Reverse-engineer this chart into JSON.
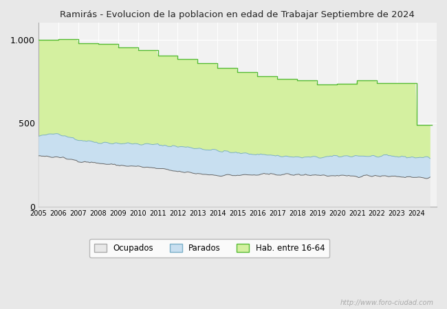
{
  "title": "Ramirás - Evolucion de la poblacion en edad de Trabajar Septiembre de 2024",
  "years": [
    2005,
    2006,
    2007,
    2008,
    2009,
    2010,
    2011,
    2012,
    2013,
    2014,
    2015,
    2016,
    2017,
    2018,
    2019,
    2020,
    2021,
    2022,
    2023,
    2024
  ],
  "hab_16_64": [
    1000,
    1003,
    980,
    975,
    955,
    935,
    905,
    885,
    860,
    830,
    805,
    780,
    765,
    755,
    730,
    735,
    755,
    740,
    740,
    490
  ],
  "parados_upper": [
    420,
    440,
    400,
    385,
    380,
    375,
    370,
    360,
    350,
    335,
    320,
    315,
    305,
    295,
    295,
    300,
    305,
    300,
    300,
    295
  ],
  "ocupados_upper": [
    305,
    295,
    275,
    260,
    248,
    240,
    228,
    210,
    198,
    188,
    188,
    190,
    195,
    190,
    190,
    182,
    182,
    187,
    182,
    175
  ],
  "color_hab_fill": "#d4f0a0",
  "color_hab_line": "#55bb33",
  "color_parados_fill": "#c8dff0",
  "color_parados_line": "#7aafc8",
  "color_ocupados_fill": "#e8e8e8",
  "color_ocupados_line": "#666666",
  "color_background": "#e8e8e8",
  "color_plot_bg": "#f2f2f2",
  "watermark": "http://www.foro-ciudad.com",
  "legend_labels": [
    "Ocupados",
    "Parados",
    "Hab. entre 16-64"
  ],
  "ylim": [
    0,
    1100
  ],
  "yticks": [
    0,
    500,
    1000
  ],
  "ytick_labels": [
    "0",
    "500",
    "1.000"
  ]
}
